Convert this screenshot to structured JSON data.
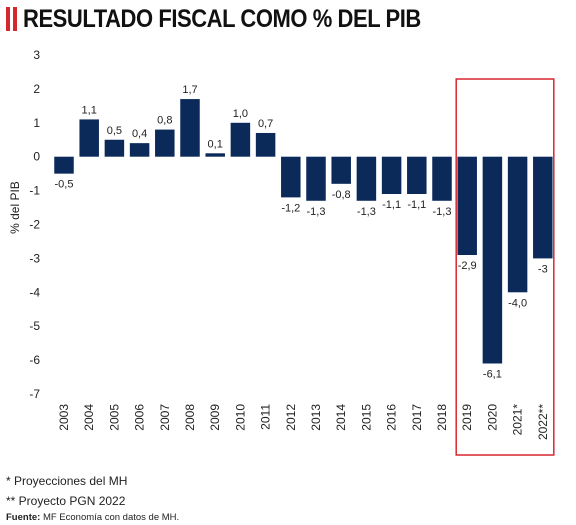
{
  "title": "RESULTADO FISCAL COMO % DEL PIB",
  "colors": {
    "bar": "#0b2a5a",
    "accent": "#d7272e",
    "highlight_box": "#d7272e"
  },
  "chart_data": {
    "type": "bar",
    "ylabel": "% del PIB",
    "ylim": [
      -7,
      3
    ],
    "yticks": [
      "3",
      "2",
      "1",
      "0",
      "-1",
      "-2",
      "-3",
      "-4",
      "-5",
      "-6",
      "-7"
    ],
    "categories": [
      "2003",
      "2004",
      "2005",
      "2006",
      "2007",
      "2008",
      "2009",
      "2010",
      "2011",
      "2012",
      "2013",
      "2014",
      "2015",
      "2016",
      "2017",
      "2018",
      "2019",
      "2020",
      "2021*",
      "2022**"
    ],
    "values": [
      -0.5,
      1.1,
      0.5,
      0.4,
      0.8,
      1.7,
      0.1,
      1.0,
      0.7,
      -1.2,
      -1.3,
      -0.8,
      -1.3,
      -1.1,
      -1.1,
      -1.3,
      -2.9,
      -6.1,
      -4.0,
      -3.0
    ],
    "data_labels": [
      "-0,5",
      "1,1",
      "0,5",
      "0,4",
      "0,8",
      "1,7",
      "0,1",
      "1,0",
      "0,7",
      "-1,2",
      "-1,3",
      "-0,8",
      "-1,3",
      "-1,1",
      "-1,1",
      "-1,3",
      "-2,9",
      "-6,1",
      "-4,0",
      "-3"
    ],
    "highlighted_categories": [
      "2019",
      "2020",
      "2021*",
      "2022**"
    ],
    "grid": false,
    "legend": false
  },
  "notes": {
    "note1": "* Proyecciones del MH",
    "note2": "** Proyecto PGN 2022",
    "source_label": "Fuente:",
    "source_text": " MF Economía con datos de MH."
  }
}
